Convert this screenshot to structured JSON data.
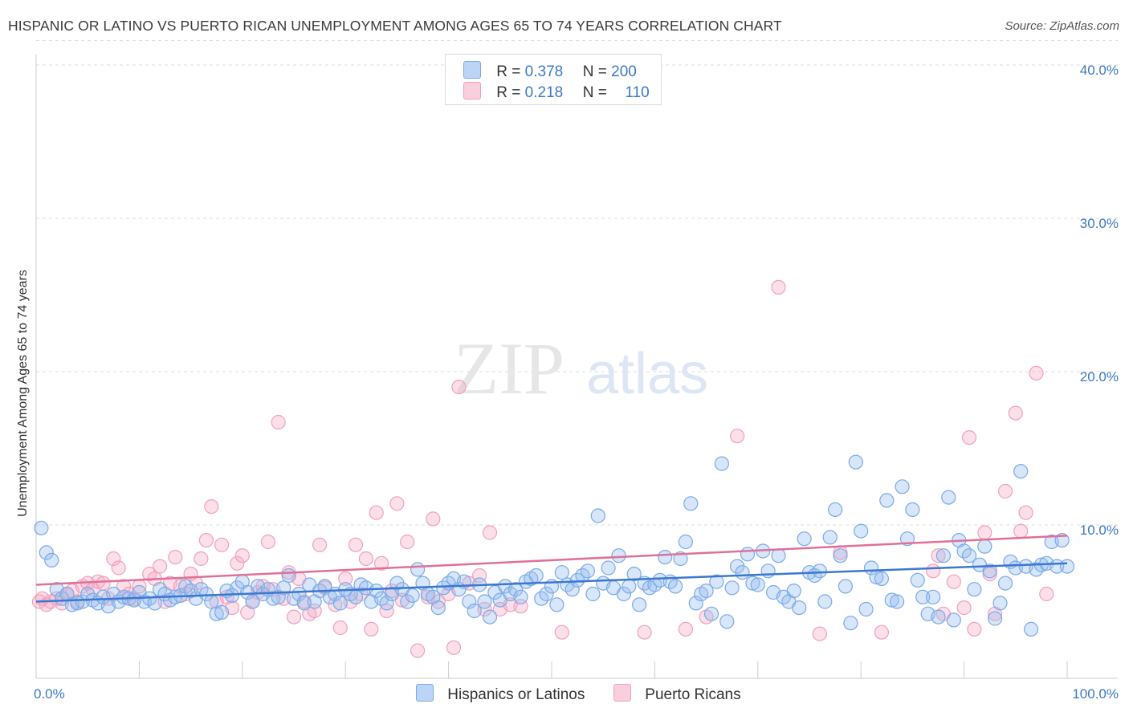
{
  "title": "HISPANIC OR LATINO VS PUERTO RICAN UNEMPLOYMENT AMONG AGES 65 TO 74 YEARS CORRELATION CHART",
  "source": "Source: ZipAtlas.com",
  "watermark": {
    "zip": "ZIP",
    "atlas": "atlas"
  },
  "chart_data": {
    "type": "scatter",
    "ylabel": "Unemployment Among Ages 65 to 74 years",
    "xlim": [
      0,
      100
    ],
    "ylim": [
      0,
      40
    ],
    "x_ticks": [
      "0.0%",
      "100.0%"
    ],
    "y_ticks": [
      {
        "value": 10,
        "label": "10.0%"
      },
      {
        "value": 20,
        "label": "20.0%"
      },
      {
        "value": 30,
        "label": "30.0%"
      },
      {
        "value": 40,
        "label": "40.0%"
      }
    ],
    "grid": true,
    "legend_placement": "top-center",
    "series": [
      {
        "name": "Hispanics or Latinos",
        "color": "#7aaae8",
        "line_color": "#3c78d0",
        "stats": {
          "r_label": "R =",
          "r": "0.378",
          "n_label": "N =",
          "n": "200"
        },
        "trend": {
          "x": [
            0,
            100
          ],
          "y": [
            5.0,
            7.5
          ]
        },
        "points": [
          [
            0.5,
            9.8
          ],
          [
            1,
            8.2
          ],
          [
            1.5,
            7.7
          ],
          [
            2,
            5.8
          ],
          [
            2.5,
            5.2
          ],
          [
            3,
            5.5
          ],
          [
            3.5,
            4.8
          ],
          [
            4,
            4.9
          ],
          [
            4.5,
            5.0
          ],
          [
            5,
            5.5
          ],
          [
            5.5,
            5.1
          ],
          [
            6,
            4.9
          ],
          [
            6.5,
            5.3
          ],
          [
            7,
            4.7
          ],
          [
            7.5,
            5.5
          ],
          [
            8,
            5.0
          ],
          [
            8.5,
            5.3
          ],
          [
            9,
            5.2
          ],
          [
            9.5,
            5.1
          ],
          [
            10,
            5.6
          ],
          [
            10.5,
            5.0
          ],
          [
            11,
            5.2
          ],
          [
            11.5,
            4.9
          ],
          [
            12,
            5.8
          ],
          [
            12.5,
            5.5
          ],
          [
            13,
            5.1
          ],
          [
            13.5,
            5.3
          ],
          [
            14,
            5.4
          ],
          [
            14.5,
            6.0
          ],
          [
            15,
            5.7
          ],
          [
            15.5,
            5.2
          ],
          [
            16,
            5.8
          ],
          [
            16.5,
            5.5
          ],
          [
            17,
            5.0
          ],
          [
            17.5,
            4.2
          ],
          [
            18,
            4.3
          ],
          [
            18.5,
            5.7
          ],
          [
            19,
            5.4
          ],
          [
            19.5,
            5.9
          ],
          [
            20,
            6.3
          ],
          [
            20.5,
            5.6
          ],
          [
            21,
            5.0
          ],
          [
            21.5,
            6.0
          ],
          [
            22,
            5.5
          ],
          [
            22.5,
            5.8
          ],
          [
            23,
            5.2
          ],
          [
            23.5,
            5.3
          ],
          [
            24,
            5.9
          ],
          [
            24.5,
            6.7
          ],
          [
            25,
            5.2
          ],
          [
            25.5,
            5.5
          ],
          [
            26,
            4.9
          ],
          [
            26.5,
            6.1
          ],
          [
            27,
            5.0
          ],
          [
            27.5,
            5.7
          ],
          [
            28,
            6.0
          ],
          [
            28.5,
            5.3
          ],
          [
            29,
            5.5
          ],
          [
            29.5,
            4.9
          ],
          [
            30,
            5.8
          ],
          [
            30.5,
            5.5
          ],
          [
            31,
            5.3
          ],
          [
            31.5,
            6.1
          ],
          [
            32,
            5.9
          ],
          [
            32.5,
            5.0
          ],
          [
            33,
            5.7
          ],
          [
            33.5,
            5.2
          ],
          [
            34,
            4.9
          ],
          [
            34.5,
            5.5
          ],
          [
            35,
            6.2
          ],
          [
            35.5,
            5.8
          ],
          [
            36,
            5.0
          ],
          [
            36.5,
            5.4
          ],
          [
            37,
            7.1
          ],
          [
            37.5,
            6.2
          ],
          [
            38,
            5.5
          ],
          [
            38.5,
            5.3
          ],
          [
            39,
            4.6
          ],
          [
            39.5,
            5.9
          ],
          [
            40,
            6.2
          ],
          [
            40.5,
            6.5
          ],
          [
            41,
            5.8
          ],
          [
            41.5,
            6.3
          ],
          [
            42,
            5.0
          ],
          [
            42.5,
            4.4
          ],
          [
            43,
            6.1
          ],
          [
            43.5,
            5.0
          ],
          [
            44,
            4.0
          ],
          [
            44.5,
            5.6
          ],
          [
            45,
            5.1
          ],
          [
            45.5,
            6.0
          ],
          [
            46,
            5.5
          ],
          [
            46.5,
            5.8
          ],
          [
            47,
            5.3
          ],
          [
            47.5,
            6.3
          ],
          [
            48,
            6.5
          ],
          [
            48.5,
            6.7
          ],
          [
            49,
            5.2
          ],
          [
            49.5,
            5.5
          ],
          [
            50,
            6.0
          ],
          [
            50.5,
            4.8
          ],
          [
            51,
            6.9
          ],
          [
            51.5,
            6.1
          ],
          [
            52,
            5.8
          ],
          [
            52.5,
            6.4
          ],
          [
            53,
            6.7
          ],
          [
            53.5,
            7.0
          ],
          [
            54,
            5.5
          ],
          [
            54.5,
            10.6
          ],
          [
            55,
            6.2
          ],
          [
            55.5,
            7.2
          ],
          [
            56,
            5.9
          ],
          [
            56.5,
            8.0
          ],
          [
            57,
            5.5
          ],
          [
            57.5,
            6.0
          ],
          [
            58,
            6.8
          ],
          [
            58.5,
            4.8
          ],
          [
            59,
            6.2
          ],
          [
            59.5,
            5.9
          ],
          [
            60,
            6.1
          ],
          [
            60.5,
            6.4
          ],
          [
            61,
            7.9
          ],
          [
            61.5,
            6.3
          ],
          [
            62,
            6.0
          ],
          [
            62.5,
            7.8
          ],
          [
            63,
            8.9
          ],
          [
            63.5,
            11.4
          ],
          [
            64,
            4.9
          ],
          [
            64.5,
            5.5
          ],
          [
            65,
            5.7
          ],
          [
            65.5,
            4.2
          ],
          [
            66,
            6.3
          ],
          [
            66.5,
            14.0
          ],
          [
            67,
            3.7
          ],
          [
            67.5,
            5.9
          ],
          [
            68,
            7.3
          ],
          [
            68.5,
            6.9
          ],
          [
            69,
            8.1
          ],
          [
            69.5,
            6.2
          ],
          [
            70,
            6.1
          ],
          [
            70.5,
            8.3
          ],
          [
            71,
            7.0
          ],
          [
            71.5,
            5.6
          ],
          [
            72,
            8.0
          ],
          [
            72.5,
            5.3
          ],
          [
            73,
            5.0
          ],
          [
            73.5,
            5.7
          ],
          [
            74,
            4.6
          ],
          [
            74.5,
            9.1
          ],
          [
            75,
            6.9
          ],
          [
            75.5,
            6.7
          ],
          [
            76,
            7.0
          ],
          [
            76.5,
            5.0
          ],
          [
            77,
            9.2
          ],
          [
            77.5,
            11.0
          ],
          [
            78,
            8.0
          ],
          [
            78.5,
            6.0
          ],
          [
            79,
            3.6
          ],
          [
            79.5,
            14.1
          ],
          [
            80,
            9.6
          ],
          [
            80.5,
            4.5
          ],
          [
            81,
            7.2
          ],
          [
            81.5,
            6.6
          ],
          [
            82,
            6.5
          ],
          [
            82.5,
            11.6
          ],
          [
            83,
            5.1
          ],
          [
            83.5,
            5.0
          ],
          [
            84,
            12.5
          ],
          [
            84.5,
            9.1
          ],
          [
            85,
            11.0
          ],
          [
            85.5,
            6.4
          ],
          [
            86,
            5.3
          ],
          [
            86.5,
            4.2
          ],
          [
            87,
            5.3
          ],
          [
            87.5,
            4.0
          ],
          [
            88,
            8.0
          ],
          [
            88.5,
            11.8
          ],
          [
            89,
            3.8
          ],
          [
            89.5,
            9.0
          ],
          [
            90,
            8.3
          ],
          [
            90.5,
            8.0
          ],
          [
            91,
            5.8
          ],
          [
            91.5,
            7.4
          ],
          [
            92,
            8.6
          ],
          [
            92.5,
            7.0
          ],
          [
            93,
            3.9
          ],
          [
            93.5,
            4.9
          ],
          [
            94,
            6.2
          ],
          [
            94.5,
            7.6
          ],
          [
            95,
            7.2
          ],
          [
            95.5,
            13.5
          ],
          [
            96,
            7.3
          ],
          [
            96.5,
            3.2
          ],
          [
            97,
            7.1
          ],
          [
            97.5,
            7.4
          ],
          [
            98,
            7.5
          ],
          [
            98.5,
            8.9
          ],
          [
            99,
            7.3
          ],
          [
            99.5,
            9.0
          ],
          [
            100,
            7.3
          ]
        ]
      },
      {
        "name": "Puerto Ricans",
        "color": "#f2a0bc",
        "line_color": "#e07098",
        "stats": {
          "r_label": "R =",
          "r": "0.218",
          "n_label": "N =",
          "n": "110"
        },
        "trend": {
          "x": [
            0,
            100
          ],
          "y": [
            6.1,
            9.3
          ]
        },
        "points": [
          [
            0.3,
            5.0
          ],
          [
            0.6,
            5.2
          ],
          [
            1,
            4.8
          ],
          [
            1.4,
            5.0
          ],
          [
            2,
            5.2
          ],
          [
            2.5,
            4.9
          ],
          [
            3,
            5.5
          ],
          [
            3.5,
            5.7
          ],
          [
            4,
            5.0
          ],
          [
            4.5,
            6.0
          ],
          [
            5,
            6.2
          ],
          [
            5.5,
            5.8
          ],
          [
            6,
            6.3
          ],
          [
            6.5,
            6.2
          ],
          [
            7,
            5.2
          ],
          [
            7.5,
            7.8
          ],
          [
            8,
            7.2
          ],
          [
            8.5,
            6.0
          ],
          [
            9,
            5.5
          ],
          [
            9.5,
            5.2
          ],
          [
            10,
            6.0
          ],
          [
            11,
            6.8
          ],
          [
            11.5,
            6.5
          ],
          [
            12,
            7.3
          ],
          [
            12.5,
            5.0
          ],
          [
            13,
            6.2
          ],
          [
            13.5,
            7.9
          ],
          [
            14,
            6.0
          ],
          [
            14.5,
            5.5
          ],
          [
            15,
            6.8
          ],
          [
            15.5,
            6.2
          ],
          [
            16,
            7.8
          ],
          [
            16.5,
            9.0
          ],
          [
            17,
            11.2
          ],
          [
            17.5,
            5.0
          ],
          [
            18,
            8.7
          ],
          [
            18.5,
            5.3
          ],
          [
            19,
            4.6
          ],
          [
            19.5,
            7.5
          ],
          [
            20,
            8.0
          ],
          [
            20.5,
            4.3
          ],
          [
            21,
            5.0
          ],
          [
            21.5,
            5.6
          ],
          [
            22,
            6.0
          ],
          [
            22.5,
            8.9
          ],
          [
            23,
            5.8
          ],
          [
            23.5,
            16.7
          ],
          [
            24,
            5.2
          ],
          [
            24.5,
            6.9
          ],
          [
            25,
            4.0
          ],
          [
            25.5,
            6.5
          ],
          [
            26,
            5.0
          ],
          [
            26.5,
            4.2
          ],
          [
            27,
            4.4
          ],
          [
            27.5,
            8.7
          ],
          [
            28,
            5.9
          ],
          [
            29,
            4.8
          ],
          [
            29.5,
            3.3
          ],
          [
            30,
            6.5
          ],
          [
            30.5,
            5.0
          ],
          [
            31,
            8.7
          ],
          [
            31.5,
            5.5
          ],
          [
            32,
            7.8
          ],
          [
            32.5,
            3.2
          ],
          [
            33,
            10.8
          ],
          [
            33.5,
            7.5
          ],
          [
            34,
            4.4
          ],
          [
            34.5,
            5.7
          ],
          [
            35,
            11.4
          ],
          [
            35.5,
            5.1
          ],
          [
            36,
            8.9
          ],
          [
            37,
            1.8
          ],
          [
            38,
            5.3
          ],
          [
            38.5,
            10.4
          ],
          [
            39,
            5.0
          ],
          [
            40,
            5.5
          ],
          [
            40.5,
            2.0
          ],
          [
            41,
            19.0
          ],
          [
            42,
            6.2
          ],
          [
            43,
            6.7
          ],
          [
            43.5,
            4.5
          ],
          [
            44,
            9.5
          ],
          [
            45,
            4.5
          ],
          [
            46,
            4.8
          ],
          [
            47,
            4.7
          ],
          [
            51,
            3.0
          ],
          [
            59,
            3.0
          ],
          [
            63,
            3.2
          ],
          [
            65,
            4.0
          ],
          [
            68,
            15.8
          ],
          [
            72,
            25.5
          ],
          [
            76,
            2.9
          ],
          [
            78,
            8.2
          ],
          [
            82,
            3.0
          ],
          [
            87,
            7.0
          ],
          [
            87.5,
            8.0
          ],
          [
            88,
            4.2
          ],
          [
            89,
            6.3
          ],
          [
            90,
            4.6
          ],
          [
            90.5,
            15.7
          ],
          [
            91,
            3.2
          ],
          [
            92,
            9.5
          ],
          [
            92.5,
            6.8
          ],
          [
            93,
            4.2
          ],
          [
            94,
            12.2
          ],
          [
            95,
            17.3
          ],
          [
            95.5,
            9.6
          ],
          [
            96,
            10.8
          ],
          [
            97,
            19.9
          ],
          [
            98,
            5.5
          ]
        ]
      }
    ]
  }
}
